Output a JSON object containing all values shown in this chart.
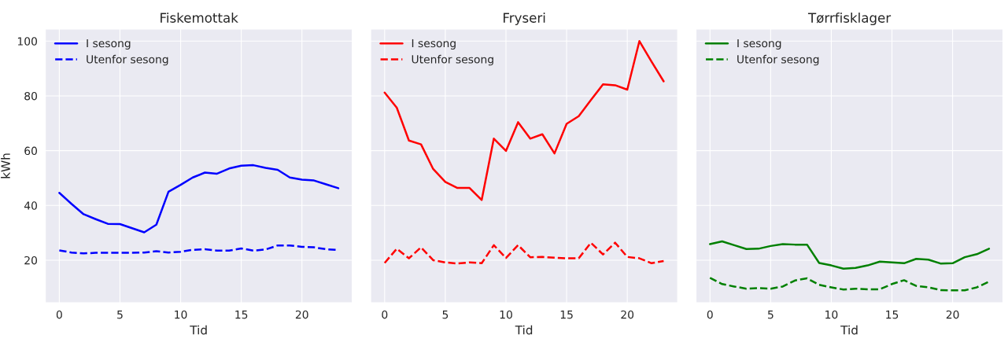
{
  "chart_data": [
    {
      "type": "line",
      "title": "Fiskemottak",
      "xlabel": "Tid",
      "ylabel": "kWh",
      "x": [
        0,
        1,
        2,
        3,
        4,
        5,
        6,
        7,
        8,
        9,
        10,
        11,
        12,
        13,
        14,
        15,
        16,
        17,
        18,
        19,
        20,
        21,
        22,
        23
      ],
      "xlim": [
        -1.15,
        24.15
      ],
      "xticks": [
        0,
        5,
        10,
        15,
        20
      ],
      "ylim": [
        4.5,
        104.4
      ],
      "yticks": [
        20,
        40,
        60,
        80,
        100
      ],
      "grid": true,
      "legend": "top left",
      "series": [
        {
          "name": "I sesong",
          "color": "#0000ff",
          "line_style": "solid",
          "values": [
            44.6,
            40.6,
            36.8,
            35,
            33.3,
            33.2,
            31.7,
            30.2,
            33,
            45,
            47.5,
            50.2,
            52,
            51.6,
            53.5,
            54.5,
            54.7,
            53.7,
            53,
            50.2,
            49.4,
            49.1,
            47.7,
            46.3
          ]
        },
        {
          "name": "Utenfor sesong",
          "color": "#0000ff",
          "line_style": "dashed",
          "values": [
            23.6,
            22.8,
            22.5,
            22.7,
            22.7,
            22.7,
            22.7,
            22.8,
            23.3,
            22.8,
            23.1,
            23.8,
            24,
            23.5,
            23.5,
            24.3,
            23.5,
            23.9,
            25.4,
            25.4,
            24.9,
            24.7,
            24,
            23.7
          ]
        }
      ]
    },
    {
      "type": "line",
      "title": "Fryseri",
      "xlabel": "Tid",
      "x": [
        0,
        1,
        2,
        3,
        4,
        5,
        6,
        7,
        8,
        9,
        10,
        11,
        12,
        13,
        14,
        15,
        16,
        17,
        18,
        19,
        20,
        21,
        22,
        23
      ],
      "xlim": [
        -1.15,
        24.15
      ],
      "xticks": [
        0,
        5,
        10,
        15,
        20
      ],
      "ylim": [
        4.5,
        104.4
      ],
      "yticks": [
        20,
        40,
        60,
        80,
        100
      ],
      "tick_labels": "x",
      "grid": true,
      "legend": "top left",
      "series": [
        {
          "name": "I sesong",
          "color": "#ff0000",
          "line_style": "solid",
          "values": [
            81.2,
            75.7,
            63.7,
            62.3,
            53.3,
            48.6,
            46.4,
            46.4,
            42,
            64.4,
            59.9,
            70.4,
            64.4,
            66,
            59,
            69.8,
            72.6,
            78.5,
            84.2,
            83.9,
            82.3,
            100,
            92.5,
            85.3
          ]
        },
        {
          "name": "Utenfor sesong",
          "color": "#ff0000",
          "line_style": "dashed",
          "values": [
            19,
            24.2,
            20.7,
            24.7,
            20,
            19.2,
            18.8,
            19.2,
            18.9,
            25.5,
            20.8,
            25.5,
            21.1,
            21.2,
            20.9,
            20.7,
            20.7,
            26.4,
            22.1,
            26.4,
            21.2,
            20.7,
            18.9,
            19.7
          ]
        }
      ]
    },
    {
      "type": "line",
      "title": "Tørrfisklager",
      "xlabel": "Tid",
      "x": [
        0,
        1,
        2,
        3,
        4,
        5,
        6,
        7,
        8,
        9,
        10,
        11,
        12,
        13,
        14,
        15,
        16,
        17,
        18,
        19,
        20,
        21,
        22,
        23
      ],
      "xlim": [
        -1.15,
        24.15
      ],
      "xticks": [
        0,
        5,
        10,
        15,
        20
      ],
      "ylim": [
        4.5,
        104.4
      ],
      "yticks": [
        20,
        40,
        60,
        80,
        100
      ],
      "tick_labels": "x",
      "grid": true,
      "legend": "top left",
      "series": [
        {
          "name": "I sesong",
          "color": "#008000",
          "line_style": "solid",
          "values": [
            25.9,
            26.9,
            25.5,
            24.1,
            24.2,
            25.2,
            25.9,
            25.7,
            25.7,
            19,
            18.1,
            16.9,
            17.2,
            18.1,
            19.5,
            19.2,
            18.9,
            20.5,
            20.2,
            18.8,
            18.9,
            21.1,
            22.2,
            24.2
          ]
        },
        {
          "name": "Utenfor sesong",
          "color": "#008000",
          "line_style": "dashed",
          "values": [
            13.6,
            11.3,
            10.4,
            9.6,
            9.8,
            9.6,
            10.4,
            12.6,
            13.4,
            11,
            10.1,
            9.3,
            9.6,
            9.4,
            9.4,
            11.3,
            12.7,
            10.6,
            10.1,
            9.1,
            9,
            9,
            10.1,
            12.2
          ]
        }
      ]
    }
  ]
}
